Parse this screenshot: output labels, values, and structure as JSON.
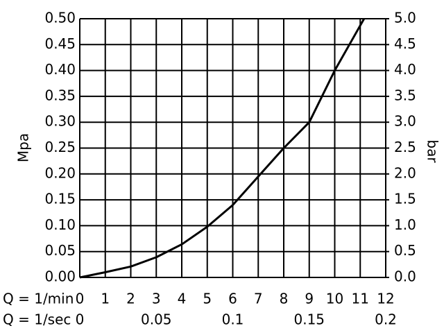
{
  "chart_data": {
    "type": "line",
    "y_label": "Mpa",
    "y2_label": "bar",
    "x_label": "Q = 1/min",
    "x2_label": "Q = 1/sec",
    "x": [
      0,
      1,
      2,
      3,
      4,
      5,
      6,
      7,
      8,
      9,
      10,
      11.15
    ],
    "values": [
      0,
      0.01,
      0.021,
      0.039,
      0.064,
      0.098,
      0.14,
      0.195,
      0.25,
      0.3,
      0.4,
      0.5
    ],
    "color": "#000000",
    "xlim": [
      0,
      12
    ],
    "xticks": [
      0,
      1,
      2,
      3,
      4,
      5,
      6,
      7,
      8,
      9,
      10,
      11,
      12
    ],
    "x2lim": [
      0,
      0.2
    ],
    "x2ticks": [
      0,
      0.05,
      0.1,
      0.15,
      0.2
    ],
    "ylim": [
      0,
      0.5
    ],
    "yticks": [
      {
        "value": 0,
        "label": "0.00"
      },
      {
        "value": 0.05,
        "label": "0.05"
      },
      {
        "value": 0.1,
        "label": "0.10"
      },
      {
        "value": 0.15,
        "label": "0.15"
      },
      {
        "value": 0.2,
        "label": "0.20"
      },
      {
        "value": 0.25,
        "label": "0.25"
      },
      {
        "value": 0.3,
        "label": "0.30"
      },
      {
        "value": 0.35,
        "label": "0.35"
      },
      {
        "value": 0.4,
        "label": "0.40"
      },
      {
        "value": 0.45,
        "label": "0.45"
      },
      {
        "value": 0.5,
        "label": "0.50"
      }
    ],
    "y2lim": [
      0,
      5
    ],
    "y2ticks": [
      {
        "value": 0,
        "label": "0.0"
      },
      {
        "value": 0.5,
        "label": "0.5"
      },
      {
        "value": 1,
        "label": "1.0"
      },
      {
        "value": 1.5,
        "label": "1.5"
      },
      {
        "value": 2,
        "label": "2.0"
      },
      {
        "value": 2.5,
        "label": "2.5"
      },
      {
        "value": 3,
        "label": "3.0"
      },
      {
        "value": 3.5,
        "label": "3.5"
      },
      {
        "value": 4,
        "label": "4.0"
      },
      {
        "value": 4.5,
        "label": "4.5"
      },
      {
        "value": 5,
        "label": "5.0"
      }
    ],
    "grid": true
  }
}
